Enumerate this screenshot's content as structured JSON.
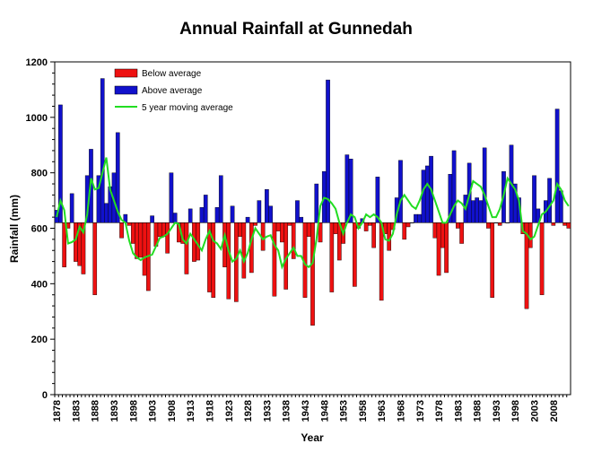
{
  "chart_data": {
    "type": "bar",
    "title": "Annual Rainfall at Gunnedah",
    "xlabel": "Year",
    "ylabel": "Rainfall (mm)",
    "ylim": [
      0,
      1200
    ],
    "yticks": [
      0,
      200,
      400,
      600,
      800,
      1000,
      1200
    ],
    "xtick_labels": [
      "1878",
      "1883",
      "1888",
      "1893",
      "1898",
      "1903",
      "1908",
      "1913",
      "1918",
      "1923",
      "1928",
      "1933",
      "1938",
      "1943",
      "1948",
      "1953",
      "1958",
      "1963",
      "1968",
      "1973",
      "1978",
      "1983",
      "1988",
      "1993",
      "1998",
      "2003",
      "2008"
    ],
    "baseline": 620,
    "grid": false,
    "legend_position": "top-left",
    "legend": [
      {
        "label": "Below average",
        "color": "#ee1111"
      },
      {
        "label": "Above average",
        "color": "#1111cc"
      },
      {
        "label": "5 year moving average",
        "color": "#22dd22"
      }
    ],
    "x": [
      1878,
      1879,
      1880,
      1881,
      1882,
      1883,
      1884,
      1885,
      1886,
      1887,
      1888,
      1889,
      1890,
      1891,
      1892,
      1893,
      1894,
      1895,
      1896,
      1897,
      1898,
      1899,
      1900,
      1901,
      1902,
      1903,
      1904,
      1905,
      1906,
      1907,
      1908,
      1909,
      1910,
      1911,
      1912,
      1913,
      1914,
      1915,
      1916,
      1917,
      1918,
      1919,
      1920,
      1921,
      1922,
      1923,
      1924,
      1925,
      1926,
      1927,
      1928,
      1929,
      1930,
      1931,
      1932,
      1933,
      1934,
      1935,
      1936,
      1937,
      1938,
      1939,
      1940,
      1941,
      1942,
      1943,
      1944,
      1945,
      1946,
      1947,
      1948,
      1949,
      1950,
      1951,
      1952,
      1953,
      1954,
      1955,
      1956,
      1957,
      1958,
      1959,
      1960,
      1961,
      1962,
      1963,
      1964,
      1965,
      1966,
      1967,
      1968,
      1969,
      1970,
      1971,
      1972,
      1973,
      1974,
      1975,
      1976,
      1977,
      1978,
      1979,
      1980,
      1981,
      1982,
      1983,
      1984,
      1985,
      1986,
      1987,
      1988,
      1989,
      1990,
      1991,
      1992,
      1993,
      1994,
      1995,
      1996,
      1997,
      1998,
      1999,
      2000,
      2001,
      2002,
      2003,
      2004,
      2005,
      2006,
      2007,
      2008,
      2009,
      2010,
      2011,
      2012
    ],
    "series": [
      {
        "name": "Annual rainfall",
        "values": [
          665,
          1045,
          460,
          600,
          725,
          480,
          465,
          435,
          790,
          885,
          360,
          790,
          1140,
          690,
          750,
          800,
          945,
          565,
          650,
          610,
          545,
          490,
          495,
          430,
          375,
          645,
          535,
          570,
          570,
          510,
          800,
          655,
          550,
          545,
          435,
          670,
          480,
          485,
          675,
          720,
          370,
          350,
          675,
          790,
          460,
          345,
          680,
          335,
          570,
          420,
          640,
          440,
          610,
          700,
          520,
          740,
          680,
          355,
          590,
          550,
          380,
          610,
          490,
          700,
          640,
          350,
          570,
          250,
          760,
          550,
          805,
          1135,
          370,
          580,
          485,
          545,
          865,
          850,
          390,
          600,
          635,
          590,
          610,
          530,
          785,
          340,
          580,
          520,
          595,
          710,
          845,
          560,
          605,
          620,
          650,
          650,
          810,
          825,
          860,
          565,
          430,
          530,
          440,
          795,
          880,
          600,
          545,
          720,
          835,
          700,
          710,
          700,
          890,
          600,
          350,
          620,
          610,
          805,
          620,
          900,
          760,
          710,
          580,
          310,
          530,
          790,
          670,
          360,
          700,
          780,
          610,
          1030,
          735,
          610,
          600
        ]
      },
      {
        "name": "5 year moving average",
        "values": [
          640,
          700,
          665,
          545,
          550,
          560,
          605,
          585,
          650,
          780,
          740,
          745,
          800,
          855,
          740,
          700,
          660,
          630,
          620,
          555,
          510,
          495,
          485,
          495,
          500,
          505,
          535,
          565,
          570,
          580,
          600,
          620,
          615,
          560,
          545,
          580,
          560,
          540,
          520,
          560,
          590,
          555,
          545,
          525,
          575,
          520,
          480,
          490,
          520,
          480,
          510,
          560,
          600,
          580,
          560,
          570,
          575,
          540,
          520,
          460,
          490,
          510,
          530,
          500,
          500,
          470,
          460,
          475,
          560,
          680,
          710,
          705,
          690,
          670,
          620,
          580,
          620,
          650,
          640,
          600,
          620,
          650,
          640,
          650,
          640,
          620,
          560,
          555,
          580,
          650,
          700,
          720,
          700,
          680,
          670,
          700,
          740,
          760,
          740,
          700,
          660,
          620,
          620,
          650,
          680,
          700,
          690,
          670,
          720,
          770,
          760,
          750,
          720,
          680,
          640,
          640,
          670,
          720,
          780,
          760,
          740,
          700,
          590,
          580,
          560,
          570,
          610,
          650,
          660,
          680,
          700,
          760,
          740,
          700,
          680
        ]
      }
    ]
  }
}
